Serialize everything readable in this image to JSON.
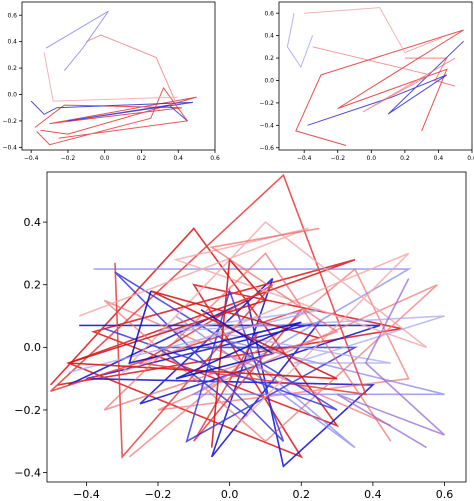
{
  "chart_data": [
    {
      "type": "line",
      "panel": "top-left",
      "xlim": [
        -0.45,
        0.6
      ],
      "ylim": [
        -0.42,
        0.7
      ],
      "xticks": [
        -0.4,
        -0.2,
        0.0,
        0.2,
        0.4,
        0.6
      ],
      "yticks": [
        -0.4,
        -0.2,
        0.0,
        0.2,
        0.4,
        0.6
      ],
      "xtick_labels": [
        "−0.4",
        "−0.2",
        "0.0",
        "0.2",
        "0.4",
        "0.6"
      ],
      "ytick_labels": [
        "−0.4",
        "−0.2",
        "0.0",
        "0.2",
        "0.4",
        "0.6"
      ],
      "grid": false,
      "series": [
        {
          "color": "#e23030",
          "alpha": 0.85,
          "points": [
            [
              -0.38,
              -0.25
            ],
            [
              -0.22,
              -0.08
            ],
            [
              0.42,
              -0.1
            ],
            [
              -0.3,
              -0.22
            ],
            [
              0.5,
              -0.02
            ],
            [
              -0.2,
              -0.3
            ],
            [
              -0.35,
              -0.27
            ]
          ]
        },
        {
          "color": "#2a2ad8",
          "alpha": 0.85,
          "points": [
            [
              -0.4,
              -0.05
            ],
            [
              -0.33,
              -0.15
            ],
            [
              -0.26,
              -0.1
            ],
            [
              0.48,
              -0.06
            ],
            [
              -0.2,
              -0.2
            ],
            [
              0.35,
              -0.08
            ],
            [
              0.45,
              -0.2
            ]
          ]
        },
        {
          "color": "#3b3be0",
          "alpha": 0.5,
          "points": [
            [
              -0.32,
              0.35
            ],
            [
              0.02,
              0.63
            ],
            [
              -0.12,
              0.35
            ],
            [
              -0.22,
              0.18
            ]
          ]
        },
        {
          "color": "#ee6a6a",
          "alpha": 0.7,
          "points": [
            [
              -0.1,
              0.4
            ],
            [
              -0.02,
              0.45
            ],
            [
              0.28,
              0.28
            ],
            [
              0.38,
              -0.04
            ]
          ]
        },
        {
          "color": "#e23030",
          "alpha": 0.8,
          "points": [
            [
              -0.37,
              -0.28
            ],
            [
              -0.3,
              -0.38
            ],
            [
              0.25,
              -0.18
            ],
            [
              0.32,
              0.05
            ],
            [
              0.45,
              -0.2
            ],
            [
              -0.25,
              -0.33
            ]
          ]
        },
        {
          "color": "#f2a0a0",
          "alpha": 0.8,
          "points": [
            [
              -0.33,
              0.32
            ],
            [
              -0.28,
              -0.05
            ],
            [
              0.4,
              -0.02
            ]
          ]
        }
      ]
    },
    {
      "type": "line",
      "panel": "top-right",
      "xlim": [
        -0.55,
        0.6
      ],
      "ylim": [
        -0.62,
        0.7
      ],
      "xticks": [
        -0.4,
        -0.2,
        0.0,
        0.2,
        0.4,
        0.6
      ],
      "yticks": [
        -0.6,
        -0.4,
        -0.2,
        0.0,
        0.2,
        0.4,
        0.6
      ],
      "xtick_labels": [
        "−0.4",
        "−0.2",
        "0.0",
        "0.2",
        "0.4",
        "0.6"
      ],
      "ytick_labels": [
        "−0.6",
        "−0.4",
        "−0.2",
        "0.0",
        "0.2",
        "0.4",
        "0.6"
      ],
      "grid": false,
      "series": [
        {
          "color": "#e23030",
          "alpha": 0.85,
          "points": [
            [
              -0.15,
              -0.58
            ],
            [
              -0.45,
              -0.45
            ],
            [
              -0.3,
              0.05
            ],
            [
              0.55,
              0.45
            ],
            [
              -0.2,
              -0.25
            ],
            [
              0.45,
              0.1
            ],
            [
              0.3,
              -0.45
            ]
          ]
        },
        {
          "color": "#2a2ad8",
          "alpha": 0.85,
          "points": [
            [
              -0.38,
              -0.4
            ],
            [
              0.12,
              -0.15
            ],
            [
              0.45,
              0.05
            ],
            [
              0.1,
              -0.3
            ],
            [
              0.55,
              0.35
            ]
          ]
        },
        {
          "color": "#a0a0f0",
          "alpha": 0.8,
          "points": [
            [
              -0.46,
              0.6
            ],
            [
              -0.5,
              0.3
            ],
            [
              -0.42,
              0.12
            ],
            [
              -0.35,
              0.4
            ]
          ]
        },
        {
          "color": "#f2a0a0",
          "alpha": 0.8,
          "points": [
            [
              -0.4,
              0.6
            ],
            [
              0.05,
              0.65
            ],
            [
              0.2,
              0.25
            ],
            [
              0.42,
              0.38
            ]
          ]
        },
        {
          "color": "#ee6a6a",
          "alpha": 0.7,
          "points": [
            [
              -0.35,
              0.3
            ],
            [
              0.35,
              0.05
            ],
            [
              -0.05,
              -0.28
            ],
            [
              0.5,
              0.2
            ]
          ]
        },
        {
          "color": "#e23030",
          "alpha": 0.6,
          "points": [
            [
              0.2,
              0.2
            ],
            [
              0.45,
              0.2
            ],
            [
              0.38,
              0.0
            ],
            [
              0.5,
              -0.05
            ]
          ]
        }
      ]
    },
    {
      "type": "line",
      "panel": "bottom",
      "xlim": [
        -0.51,
        0.66
      ],
      "ylim": [
        -0.43,
        0.56
      ],
      "xticks": [
        -0.4,
        -0.2,
        0.0,
        0.2,
        0.4,
        0.6
      ],
      "yticks": [
        -0.4,
        -0.2,
        0.0,
        0.2,
        0.4
      ],
      "xtick_labels": [
        "−0.4",
        "−0.2",
        "0.0",
        "0.2",
        "0.4",
        "0.6"
      ],
      "ytick_labels": [
        "−0.4",
        "−0.2",
        "0.0",
        "0.2",
        "0.4"
      ],
      "grid": false,
      "series": [
        {
          "color": "#e02020",
          "alpha": 0.9,
          "points": [
            [
              -0.5,
              -0.12
            ],
            [
              -0.1,
              0.38
            ],
            [
              0.3,
              -0.25
            ],
            [
              -0.38,
              0.05
            ],
            [
              0.35,
              0.28
            ],
            [
              -0.45,
              -0.05
            ],
            [
              0.2,
              -0.35
            ],
            [
              -0.1,
              0.2
            ],
            [
              0.48,
              0.06
            ],
            [
              -0.48,
              -0.12
            ]
          ]
        },
        {
          "color": "#1a1ad8",
          "alpha": 0.9,
          "points": [
            [
              -0.42,
              0.07
            ],
            [
              0.42,
              0.07
            ],
            [
              -0.25,
              -0.18
            ],
            [
              0.12,
              0.22
            ],
            [
              -0.05,
              -0.35
            ],
            [
              0.25,
              0.08
            ],
            [
              -0.4,
              -0.1
            ],
            [
              0.4,
              -0.12
            ],
            [
              0.15,
              -0.38
            ],
            [
              0.05,
              0.15
            ],
            [
              -0.45,
              -0.12
            ]
          ]
        },
        {
          "color": "#f07070",
          "alpha": 0.7,
          "points": [
            [
              -0.28,
              -0.35
            ],
            [
              0.35,
              0.25
            ],
            [
              0.5,
              -0.1
            ],
            [
              -0.2,
              -0.2
            ],
            [
              0.58,
              0.2
            ],
            [
              0.1,
              -0.3
            ],
            [
              -0.35,
              0.15
            ],
            [
              0.45,
              -0.25
            ]
          ]
        },
        {
          "color": "#8080ec",
          "alpha": 0.7,
          "points": [
            [
              -0.38,
              0.25
            ],
            [
              0.5,
              0.25
            ],
            [
              -0.1,
              -0.15
            ],
            [
              0.6,
              -0.15
            ],
            [
              0.0,
              0.02
            ],
            [
              0.35,
              -0.32
            ],
            [
              -0.15,
              0.1
            ]
          ]
        },
        {
          "color": "#e83a3a",
          "alpha": 0.85,
          "points": [
            [
              -0.32,
              0.27
            ],
            [
              -0.3,
              -0.35
            ],
            [
              0.12,
              0.2
            ],
            [
              -0.25,
              -0.05
            ],
            [
              0.38,
              -0.15
            ],
            [
              0.15,
              0.55
            ],
            [
              -0.5,
              -0.14
            ],
            [
              0.2,
              0.12
            ],
            [
              -0.1,
              -0.3
            ],
            [
              0.08,
              0.05
            ]
          ]
        },
        {
          "color": "#3a3ae0",
          "alpha": 0.85,
          "points": [
            [
              -0.35,
              0.06
            ],
            [
              0.3,
              -0.2
            ],
            [
              -0.32,
              0.24
            ],
            [
              0.15,
              -0.3
            ],
            [
              0.0,
              0.18
            ],
            [
              -0.12,
              -0.3
            ],
            [
              0.35,
              0.0
            ],
            [
              -0.2,
              0.0
            ],
            [
              0.05,
              -0.22
            ]
          ]
        },
        {
          "color": "#f4a8a8",
          "alpha": 0.8,
          "points": [
            [
              -0.42,
              0.1
            ],
            [
              0.22,
              0.38
            ],
            [
              -0.15,
              0.28
            ],
            [
              0.55,
              0.0
            ],
            [
              0.1,
              0.4
            ],
            [
              -0.3,
              -0.08
            ],
            [
              0.5,
              0.3
            ],
            [
              0.02,
              -0.25
            ]
          ]
        },
        {
          "color": "#a8a8f4",
          "alpha": 0.75,
          "points": [
            [
              -0.45,
              -0.08
            ],
            [
              0.25,
              0.12
            ],
            [
              -0.2,
              0.05
            ],
            [
              0.6,
              0.1
            ],
            [
              0.18,
              -0.05
            ],
            [
              0.45,
              -0.05
            ],
            [
              -0.05,
              0.05
            ]
          ]
        },
        {
          "color": "#d01818",
          "alpha": 0.9,
          "points": [
            [
              -0.05,
              -0.32
            ],
            [
              0.0,
              0.28
            ],
            [
              0.1,
              0.15
            ],
            [
              -0.45,
              -0.05
            ],
            [
              0.3,
              -0.1
            ],
            [
              -0.22,
              0.18
            ],
            [
              0.25,
              0.03
            ]
          ]
        },
        {
          "color": "#1010c8",
          "alpha": 0.9,
          "points": [
            [
              -0.22,
              0.18
            ],
            [
              -0.28,
              -0.05
            ],
            [
              0.2,
              0.08
            ],
            [
              -0.15,
              -0.1
            ],
            [
              0.12,
              -0.02
            ],
            [
              -0.08,
              0.12
            ]
          ]
        },
        {
          "color": "#f06060",
          "alpha": 0.65,
          "points": [
            [
              0.25,
              0.38
            ],
            [
              -0.05,
              0.32
            ],
            [
              0.3,
              0.05
            ],
            [
              -0.35,
              -0.2
            ],
            [
              0.1,
              0.3
            ],
            [
              0.45,
              -0.3
            ]
          ]
        },
        {
          "color": "#9060d0",
          "alpha": 0.7,
          "points": [
            [
              0.5,
              0.22
            ],
            [
              0.38,
              -0.05
            ],
            [
              0.6,
              -0.28
            ],
            [
              0.3,
              -0.15
            ],
            [
              0.55,
              -0.32
            ]
          ]
        }
      ]
    }
  ]
}
